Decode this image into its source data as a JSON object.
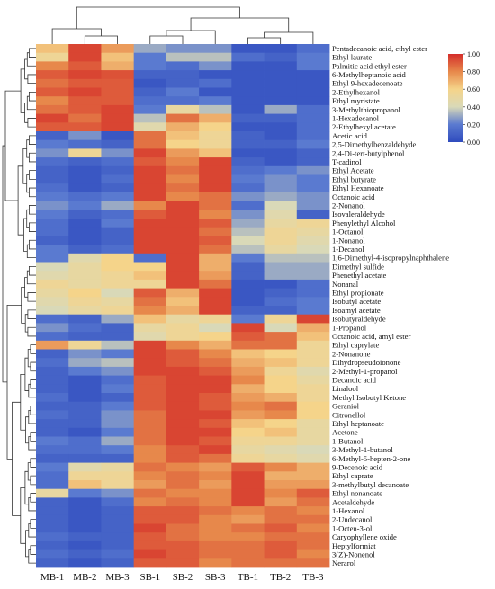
{
  "chart_data": {
    "type": "heatmap",
    "title": "",
    "columns": [
      "MB-1",
      "MB-2",
      "MB-3",
      "SB-1",
      "SB-2",
      "SB-3",
      "TB-1",
      "TB-2",
      "TB-3"
    ],
    "rows": [
      "Pentadecanoic acid, ethyl ester",
      "Ethyl laurate",
      "Palmitic acid ethyl ester",
      "6-Methylheptanoic acid",
      "Ethyl 9-hexadecenoate",
      "2-Ethylhexanol",
      "Ethyl myristate",
      "3-Methylthiopropanol",
      "1-Hexadecanol",
      "2-Ethylhexyl acetate",
      "Acetic acid",
      "2,5-Dimethylbenzaldehyde",
      "2,4-Di-tert-butylphenol",
      "T-cadinol",
      "Ethyl Acetate",
      "Ethyl butyrate",
      "Ethyl Hexanoate",
      "Octanoic acid",
      "2-Nonanol",
      "Isovaleraldehyde",
      "Phenylethyl Alcohol",
      "1-Octanol",
      "1-Nonanol",
      "1-Decanol",
      "1,6-Dimethyl-4-isopropylnaphthalene",
      "Dimethyl sulfide",
      "Phenethyl acetate",
      "Nonanal",
      "Ethyl propionate",
      "Isobutyl acetate",
      "Isoamyl acetate",
      "Isobutyraldehyde",
      "1-Propanol",
      "Octanoic acid, amyl ester",
      "Ethyl caprylate",
      "2-Nonanone",
      "Dihydropseudoionone",
      "2-Methyl-1-propanol",
      "Decanoic acid",
      "Linalool",
      "Methyl Isobutyl Ketone",
      "Geraniol",
      "Citronellol",
      "Ethyl heptanoate",
      "Acetone",
      "1-Butanol",
      "3-Methyl-1-butanol",
      "6-Methyl-5-hepten-2-one",
      "9-Decenoic acid",
      "Ethyl caprate",
      "3-methylbutyl decanoate",
      "Ethyl nonanoate",
      "Acetaldehyde",
      "1-Hexanol",
      "2-Undecanol",
      "1-Octen-3-ol",
      "Caryophyllene oxide",
      "Heptylformiat",
      "3(Z)-Nonenol",
      "Nerarol"
    ],
    "values": [
      [
        0.65,
        0.95,
        0.75,
        0.3,
        0.25,
        0.25,
        0.05,
        0.05,
        0.15
      ],
      [
        0.55,
        0.95,
        0.65,
        0.2,
        0.35,
        0.35,
        0.15,
        0.1,
        0.2
      ],
      [
        0.8,
        0.9,
        0.7,
        0.2,
        0.15,
        0.25,
        0.05,
        0.05,
        0.2
      ],
      [
        0.9,
        0.95,
        0.92,
        0.1,
        0.1,
        0.05,
        0.05,
        0.05,
        0.05
      ],
      [
        0.85,
        0.9,
        0.9,
        0.05,
        0.1,
        0.15,
        0.05,
        0.05,
        0.05
      ],
      [
        0.9,
        0.95,
        0.9,
        0.1,
        0.2,
        0.05,
        0.05,
        0.05,
        0.05
      ],
      [
        0.8,
        0.9,
        0.9,
        0.15,
        0.15,
        0.2,
        0.05,
        0.05,
        0.05
      ],
      [
        0.85,
        0.9,
        0.95,
        0.2,
        0.5,
        0.35,
        0.05,
        0.3,
        0.15
      ],
      [
        0.95,
        0.85,
        0.95,
        0.35,
        0.85,
        0.7,
        0.1,
        0.1,
        0.15
      ],
      [
        0.9,
        0.9,
        0.95,
        0.45,
        0.7,
        0.6,
        0.05,
        0.05,
        0.15
      ],
      [
        0.1,
        0.25,
        0.05,
        0.85,
        0.65,
        0.55,
        0.1,
        0.05,
        0.15
      ],
      [
        0.2,
        0.15,
        0.1,
        0.85,
        0.6,
        0.55,
        0.1,
        0.1,
        0.2
      ],
      [
        0.25,
        0.55,
        0.25,
        0.95,
        0.75,
        0.65,
        0.05,
        0.05,
        0.1
      ],
      [
        0.15,
        0.1,
        0.15,
        0.9,
        0.8,
        0.95,
        0.1,
        0.05,
        0.1
      ],
      [
        0.1,
        0.05,
        0.1,
        0.95,
        0.85,
        0.95,
        0.15,
        0.2,
        0.25
      ],
      [
        0.1,
        0.05,
        0.15,
        0.95,
        0.8,
        0.95,
        0.2,
        0.25,
        0.2
      ],
      [
        0.15,
        0.05,
        0.1,
        0.95,
        0.85,
        0.95,
        0.15,
        0.25,
        0.2
      ],
      [
        0.2,
        0.15,
        0.2,
        0.95,
        0.8,
        0.85,
        0.25,
        0.3,
        0.25
      ],
      [
        0.25,
        0.2,
        0.3,
        0.8,
        0.95,
        0.85,
        0.15,
        0.4,
        0.25
      ],
      [
        0.2,
        0.1,
        0.15,
        0.9,
        0.95,
        0.8,
        0.25,
        0.45,
        0.1
      ],
      [
        0.15,
        0.05,
        0.2,
        0.95,
        0.95,
        0.9,
        0.3,
        0.5,
        0.55
      ],
      [
        0.15,
        0.05,
        0.1,
        0.95,
        0.95,
        0.85,
        0.35,
        0.55,
        0.5
      ],
      [
        0.1,
        0.05,
        0.1,
        0.95,
        0.95,
        0.9,
        0.4,
        0.55,
        0.45
      ],
      [
        0.2,
        0.1,
        0.15,
        0.95,
        0.95,
        0.85,
        0.35,
        0.5,
        0.4
      ],
      [
        0.2,
        0.45,
        0.6,
        0.15,
        0.95,
        0.7,
        0.2,
        0.35,
        0.35
      ],
      [
        0.4,
        0.5,
        0.6,
        0.6,
        0.95,
        0.7,
        0.1,
        0.3,
        0.3
      ],
      [
        0.45,
        0.5,
        0.55,
        0.65,
        0.95,
        0.75,
        0.1,
        0.3,
        0.3
      ],
      [
        0.55,
        0.5,
        0.55,
        0.55,
        0.95,
        0.85,
        0.05,
        0.05,
        0.15
      ],
      [
        0.5,
        0.6,
        0.4,
        0.9,
        0.7,
        0.95,
        0.05,
        0.1,
        0.15
      ],
      [
        0.45,
        0.55,
        0.5,
        0.85,
        0.65,
        0.95,
        0.05,
        0.15,
        0.2
      ],
      [
        0.4,
        0.5,
        0.55,
        0.8,
        0.7,
        0.95,
        0.1,
        0.1,
        0.2
      ],
      [
        0.15,
        0.1,
        0.3,
        0.65,
        0.5,
        0.55,
        0.2,
        0.55,
        0.95
      ],
      [
        0.25,
        0.15,
        0.1,
        0.5,
        0.55,
        0.4,
        0.95,
        0.4,
        0.7
      ],
      [
        0.15,
        0.1,
        0.1,
        0.45,
        0.55,
        0.6,
        0.9,
        0.85,
        0.65
      ],
      [
        0.75,
        0.55,
        0.35,
        0.95,
        0.8,
        0.7,
        0.85,
        0.85,
        0.55
      ],
      [
        0.1,
        0.25,
        0.2,
        0.95,
        0.9,
        0.8,
        0.65,
        0.6,
        0.55
      ],
      [
        0.15,
        0.3,
        0.35,
        0.95,
        0.9,
        0.85,
        0.7,
        0.65,
        0.55
      ],
      [
        0.1,
        0.2,
        0.25,
        0.95,
        0.95,
        0.9,
        0.75,
        0.55,
        0.45
      ],
      [
        0.1,
        0.05,
        0.15,
        0.9,
        0.95,
        0.95,
        0.8,
        0.6,
        0.5
      ],
      [
        0.1,
        0.05,
        0.2,
        0.9,
        0.95,
        0.95,
        0.7,
        0.6,
        0.55
      ],
      [
        0.15,
        0.05,
        0.1,
        0.9,
        0.95,
        0.9,
        0.75,
        0.7,
        0.55
      ],
      [
        0.1,
        0.1,
        0.2,
        0.9,
        0.95,
        0.9,
        0.8,
        0.85,
        0.6
      ],
      [
        0.15,
        0.1,
        0.25,
        0.85,
        0.95,
        0.95,
        0.75,
        0.8,
        0.6
      ],
      [
        0.1,
        0.1,
        0.25,
        0.85,
        0.95,
        0.9,
        0.65,
        0.6,
        0.5
      ],
      [
        0.1,
        0.05,
        0.2,
        0.85,
        0.95,
        0.95,
        0.6,
        0.65,
        0.5
      ],
      [
        0.2,
        0.15,
        0.3,
        0.85,
        0.95,
        0.9,
        0.55,
        0.55,
        0.5
      ],
      [
        0.15,
        0.15,
        0.2,
        0.8,
        0.9,
        0.95,
        0.5,
        0.45,
        0.4
      ],
      [
        0.1,
        0.1,
        0.1,
        0.8,
        0.9,
        0.85,
        0.55,
        0.5,
        0.45
      ],
      [
        0.2,
        0.45,
        0.5,
        0.85,
        0.8,
        0.75,
        0.9,
        0.8,
        0.7
      ],
      [
        0.15,
        0.55,
        0.55,
        0.8,
        0.85,
        0.8,
        0.95,
        0.7,
        0.7
      ],
      [
        0.15,
        0.65,
        0.55,
        0.75,
        0.85,
        0.75,
        0.95,
        0.75,
        0.75
      ],
      [
        0.5,
        0.2,
        0.25,
        0.85,
        0.8,
        0.8,
        0.95,
        0.8,
        0.9
      ],
      [
        0.1,
        0.05,
        0.15,
        0.8,
        0.85,
        0.8,
        0.95,
        0.75,
        0.85
      ],
      [
        0.1,
        0.05,
        0.1,
        0.9,
        0.9,
        0.85,
        0.8,
        0.85,
        0.8
      ],
      [
        0.1,
        0.05,
        0.1,
        0.9,
        0.9,
        0.8,
        0.75,
        0.85,
        0.85
      ],
      [
        0.1,
        0.05,
        0.1,
        0.95,
        0.85,
        0.8,
        0.85,
        0.9,
        0.8
      ],
      [
        0.15,
        0.1,
        0.1,
        0.9,
        0.85,
        0.8,
        0.8,
        0.85,
        0.85
      ],
      [
        0.1,
        0.05,
        0.1,
        0.9,
        0.9,
        0.85,
        0.85,
        0.9,
        0.85
      ],
      [
        0.15,
        0.1,
        0.15,
        0.95,
        0.9,
        0.85,
        0.85,
        0.9,
        0.8
      ],
      [
        0.1,
        0.05,
        0.1,
        0.9,
        0.9,
        0.8,
        0.85,
        0.85,
        0.85
      ]
    ],
    "colorbar": {
      "min": 0.0,
      "max": 1.0,
      "ticks": [
        "0.00",
        "0.20",
        "0.40",
        "0.60",
        "0.80",
        "1.00"
      ],
      "colors": [
        "#2f4bbe",
        "#5a7ad0",
        "#d9d9b8",
        "#f5d48a",
        "#e7884b",
        "#d42e2a"
      ]
    },
    "dendrograms": {
      "rows": true,
      "columns": true
    },
    "grid": false
  }
}
